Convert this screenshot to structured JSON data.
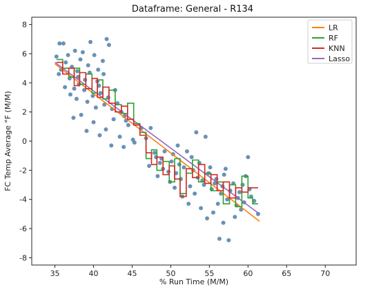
{
  "chart_data": {
    "type": "scatter",
    "title": "Dataframe: General - R134",
    "xlabel": "% Run Time (M/M)",
    "ylabel": "FC Temp Average °F (M/M)",
    "xlim": [
      32,
      74
    ],
    "ylim": [
      -8.5,
      8.5
    ],
    "xticks": [
      35,
      40,
      45,
      50,
      55,
      60,
      65,
      70
    ],
    "yticks": [
      -8,
      -6,
      -4,
      -2,
      0,
      2,
      4,
      6,
      8
    ],
    "grid": false,
    "legend_position": "top-right",
    "colors": {
      "points": "#4f7fa8",
      "LR": "#ff7f0e",
      "RF": "#2ca02c",
      "KNN": "#d62728",
      "Lasso": "#9467bd"
    },
    "scatter": {
      "name": "",
      "points": [
        [
          35.2,
          5.8
        ],
        [
          35.6,
          6.7
        ],
        [
          36.1,
          6.7
        ],
        [
          35.8,
          4.9
        ],
        [
          36.4,
          5.4
        ],
        [
          36.9,
          4.3
        ],
        [
          37.2,
          5.1
        ],
        [
          37.5,
          3.6
        ],
        [
          37.9,
          4.8
        ],
        [
          38.3,
          5.6
        ],
        [
          38.6,
          6.1
        ],
        [
          38.9,
          4.2
        ],
        [
          39.3,
          5.2
        ],
        [
          39.6,
          6.8
        ],
        [
          40.1,
          5.9
        ],
        [
          40.5,
          4.1
        ],
        [
          40.9,
          3.3
        ],
        [
          41.2,
          5.5
        ],
        [
          41.7,
          7.0
        ],
        [
          42.0,
          6.6
        ],
        [
          36.3,
          3.7
        ],
        [
          37.0,
          3.2
        ],
        [
          37.8,
          2.9
        ],
        [
          38.1,
          3.9
        ],
        [
          38.8,
          3.5
        ],
        [
          39.2,
          2.7
        ],
        [
          39.9,
          3.1
        ],
        [
          40.3,
          2.3
        ],
        [
          40.7,
          3.8
        ],
        [
          41.3,
          4.6
        ],
        [
          41.9,
          3.0
        ],
        [
          42.4,
          2.2
        ],
        [
          42.8,
          3.5
        ],
        [
          43.1,
          2.6
        ],
        [
          43.6,
          2.0
        ],
        [
          44.0,
          1.7
        ],
        [
          44.5,
          1.1
        ],
        [
          37.4,
          1.6
        ],
        [
          38.4,
          1.8
        ],
        [
          39.1,
          0.7
        ],
        [
          40.0,
          1.3
        ],
        [
          40.8,
          0.4
        ],
        [
          41.6,
          0.8
        ],
        [
          42.3,
          -0.3
        ],
        [
          43.4,
          0.3
        ],
        [
          44.2,
          1.4
        ],
        [
          45.1,
          0.1
        ],
        [
          35.5,
          4.6
        ],
        [
          36.7,
          5.9
        ],
        [
          37.6,
          6.2
        ],
        [
          38.0,
          4.4
        ],
        [
          39.5,
          4.7
        ],
        [
          40.6,
          4.9
        ],
        [
          41.4,
          2.5
        ],
        [
          42.6,
          1.5
        ],
        [
          43.9,
          -0.4
        ],
        [
          45.3,
          -0.1
        ],
        [
          46.2,
          0.9
        ],
        [
          46.8,
          0.2
        ],
        [
          47.4,
          0.9
        ],
        [
          47.9,
          -0.8
        ],
        [
          48.3,
          -2.4
        ],
        [
          48.8,
          -1.2
        ],
        [
          49.2,
          -0.7
        ],
        [
          49.7,
          -2.1
        ],
        [
          50.1,
          -1.4
        ],
        [
          50.5,
          -3.2
        ],
        [
          50.9,
          -0.3
        ],
        [
          51.3,
          -2.6
        ],
        [
          51.7,
          -1.8
        ],
        [
          52.1,
          -0.7
        ],
        [
          52.5,
          -3.1
        ],
        [
          52.9,
          -2.0
        ],
        [
          53.3,
          0.6
        ],
        [
          53.7,
          -1.5
        ],
        [
          54.1,
          -2.7
        ],
        [
          54.5,
          0.3
        ],
        [
          54.9,
          -2.2
        ],
        [
          55.3,
          -3.3
        ],
        [
          55.7,
          -2.9
        ],
        [
          56.1,
          -4.3
        ],
        [
          56.5,
          -3.6
        ],
        [
          56.9,
          -2.3
        ],
        [
          57.3,
          -4.0
        ],
        [
          57.7,
          -3.4
        ],
        [
          58.1,
          -2.9
        ],
        [
          58.5,
          -4.4
        ],
        [
          58.9,
          -3.5
        ],
        [
          59.3,
          -3.0
        ],
        [
          59.7,
          -2.4
        ],
        [
          60.0,
          -1.1
        ],
        [
          60.4,
          -3.8
        ],
        [
          60.8,
          -4.1
        ],
        [
          61.3,
          -5.0
        ],
        [
          47.2,
          -1.7
        ],
        [
          48.1,
          -1.1
        ],
        [
          49.0,
          -1.9
        ],
        [
          49.9,
          -2.8
        ],
        [
          50.7,
          -2.2
        ],
        [
          51.5,
          -3.8
        ],
        [
          52.3,
          -4.3
        ],
        [
          53.1,
          -3.6
        ],
        [
          53.9,
          -4.6
        ],
        [
          54.7,
          -5.3
        ],
        [
          55.5,
          -4.9
        ],
        [
          56.3,
          -6.7
        ],
        [
          56.8,
          -5.6
        ],
        [
          57.5,
          -6.8
        ],
        [
          58.3,
          -5.2
        ],
        [
          59.1,
          -4.7
        ],
        [
          48.6,
          -1.5
        ],
        [
          50.3,
          -0.9
        ],
        [
          51.1,
          -1.6
        ],
        [
          52.7,
          -1.1
        ],
        [
          53.5,
          -2.5
        ],
        [
          54.3,
          -3.0
        ],
        [
          55.1,
          -1.8
        ],
        [
          55.9,
          -2.6
        ],
        [
          56.7,
          -3.1
        ],
        [
          57.1,
          -1.9
        ],
        [
          58.7,
          -3.9
        ],
        [
          59.5,
          -4.2
        ],
        [
          60.2,
          -3.3
        ]
      ]
    },
    "series": [
      {
        "name": "LR",
        "x": [
          35,
          61.5
        ],
        "y": [
          5.3,
          -5.5
        ]
      },
      {
        "name": "Lasso",
        "x": [
          35,
          61.5
        ],
        "y": [
          5.4,
          -5.0
        ]
      },
      {
        "name": "RF",
        "x": [
          35.2,
          36,
          36.8,
          37.5,
          38.2,
          39,
          39.8,
          40.5,
          41.2,
          42,
          42.8,
          43.6,
          44.4,
          45.2,
          46,
          46.8,
          47.5,
          48.2,
          49,
          49.8,
          50.5,
          51.2,
          52,
          52.8,
          53.6,
          54.4,
          55.2,
          56,
          56.8,
          57.6,
          58.4,
          59.2,
          60,
          60.6,
          61.3
        ],
        "y": [
          5.6,
          5.0,
          4.4,
          5.0,
          3.9,
          4.6,
          3.3,
          4.2,
          2.9,
          3.5,
          2.5,
          1.9,
          2.6,
          1.2,
          0.6,
          -1.2,
          -0.6,
          -2.0,
          -1.4,
          -2.8,
          -1.2,
          -3.6,
          -2.2,
          -1.3,
          -2.8,
          -2.2,
          -3.4,
          -2.8,
          -4.3,
          -3.0,
          -4.5,
          -2.4,
          -3.9,
          -4.3,
          -4.3
        ]
      },
      {
        "name": "KNN",
        "x": [
          35.2,
          36,
          36.8,
          37.5,
          38.2,
          39,
          39.8,
          40.5,
          41.2,
          42,
          42.8,
          43.6,
          44.4,
          45.2,
          46,
          46.8,
          47.5,
          48.2,
          49,
          49.8,
          50.5,
          51.2,
          52,
          52.8,
          53.6,
          54.4,
          55.2,
          56,
          56.8,
          57.6,
          58.4,
          59.2,
          60,
          60.6,
          61.3
        ],
        "y": [
          5.4,
          4.6,
          5.0,
          3.8,
          4.7,
          3.6,
          4.3,
          3.0,
          3.7,
          2.6,
          2.0,
          2.4,
          1.5,
          1.1,
          0.4,
          -0.8,
          -1.6,
          -1.1,
          -2.3,
          -1.7,
          -2.6,
          -3.8,
          -1.9,
          -2.5,
          -1.6,
          -2.9,
          -2.3,
          -3.4,
          -2.8,
          -3.9,
          -3.2,
          -3.5,
          -3.2,
          -3.2,
          -3.2
        ]
      }
    ]
  }
}
